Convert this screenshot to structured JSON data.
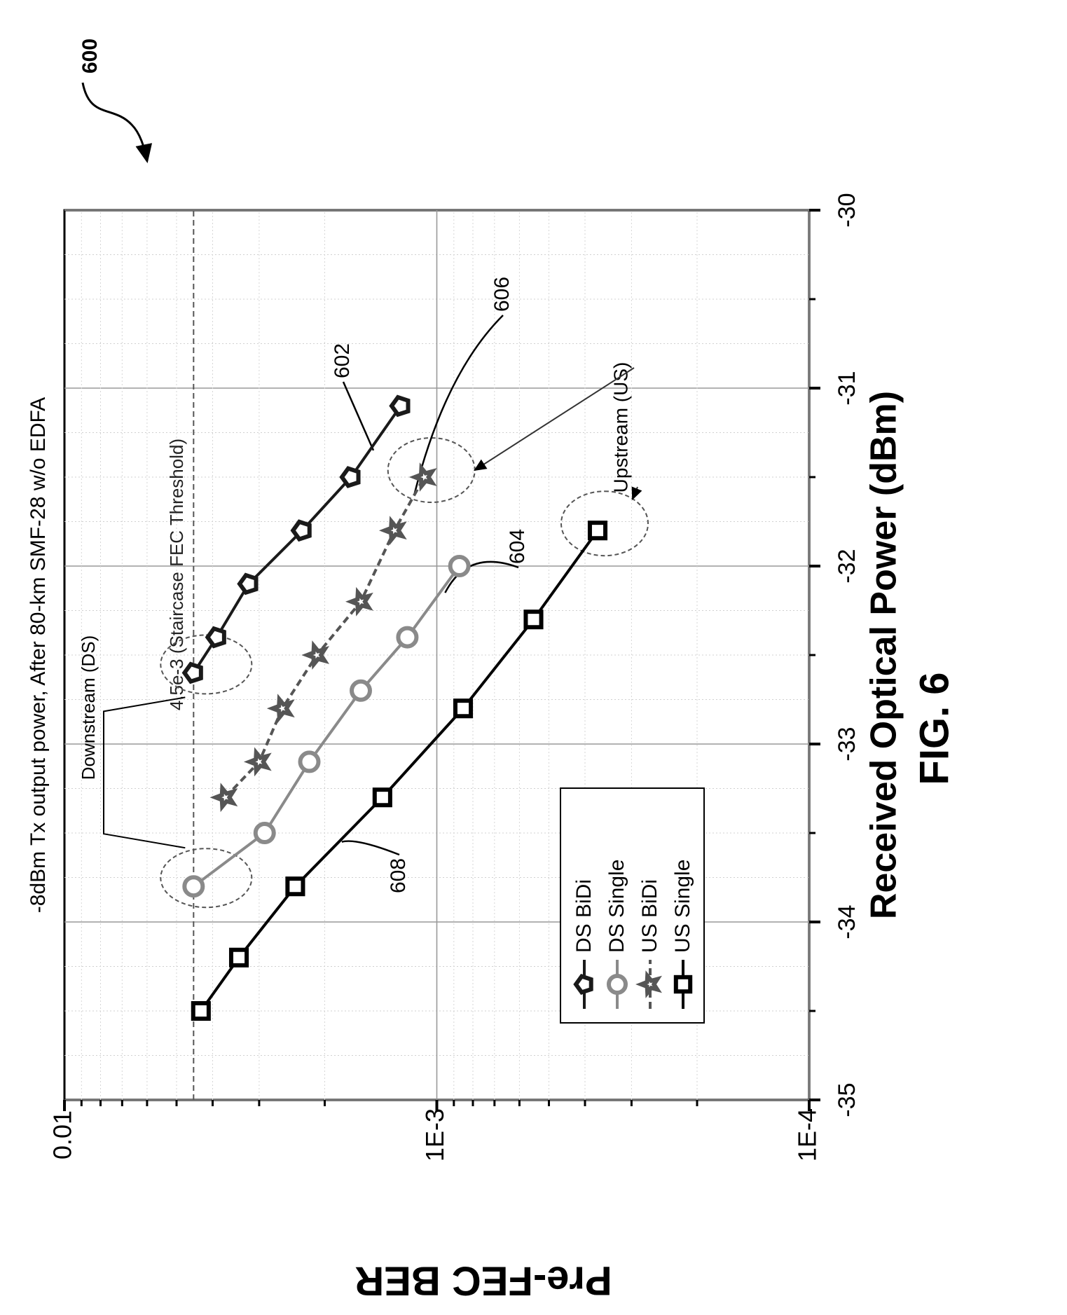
{
  "figure": {
    "ref_number": "600",
    "caption": "FIG. 6"
  },
  "chart_data": {
    "type": "line",
    "title": "-8dBm Tx output power, After 80-km SMF-28 w/o EDFA",
    "xlabel": "Received Optical Power (dBm)",
    "ylabel": "Pre-FEC BER",
    "xlim": [
      -35,
      -30
    ],
    "ylim": [
      0.0001,
      0.01
    ],
    "yscale": "log",
    "grid": true,
    "x_ticks": [
      -35,
      -34,
      -33,
      -32,
      -31,
      -30
    ],
    "x_tick_labels": [
      "-35",
      "-34",
      "-33",
      "-32",
      "-31",
      "-30"
    ],
    "y_ticks": [
      0.01,
      0.001,
      0.0001
    ],
    "y_tick_labels": [
      "0.01",
      "1E-3",
      "1E-4"
    ],
    "legend_position": "bottom-left",
    "series": [
      {
        "name": "DS BiDi",
        "marker": "pentagon",
        "color": "#1a1a1a",
        "x": [
          -32.6,
          -32.4,
          -32.1,
          -31.8,
          -31.5,
          -31.1
        ],
        "y": [
          0.0045,
          0.0039,
          0.0032,
          0.0023,
          0.0017,
          0.00125
        ]
      },
      {
        "name": "DS Single",
        "marker": "circle",
        "color": "#8a8a8a",
        "x": [
          -33.8,
          -33.5,
          -33.1,
          -32.7,
          -32.4,
          -32.0
        ],
        "y": [
          0.0045,
          0.0029,
          0.0022,
          0.0016,
          0.0012,
          0.00087
        ]
      },
      {
        "name": "US BiDi",
        "marker": "star",
        "color": "#555555",
        "x": [
          -33.3,
          -33.1,
          -32.8,
          -32.5,
          -32.2,
          -31.8,
          -31.5
        ],
        "y": [
          0.0037,
          0.003,
          0.0026,
          0.0021,
          0.0016,
          0.0013,
          0.00108
        ]
      },
      {
        "name": "US Single",
        "marker": "square",
        "color": "#000000",
        "x": [
          -34.5,
          -34.2,
          -33.8,
          -33.3,
          -32.8,
          -32.3,
          -31.8
        ],
        "y": [
          0.0043,
          0.0034,
          0.0024,
          0.0014,
          0.00085,
          0.00055,
          0.00037
        ]
      }
    ],
    "threshold": {
      "value": 0.0045,
      "label": "4.5e-3 (Staircase FEC Threshold)"
    },
    "annotations": [
      {
        "text": "Downstream (DS)"
      },
      {
        "text": "Upstream (US)"
      },
      {
        "text": "602",
        "series": "DS BiDi"
      },
      {
        "text": "604",
        "series": "DS Single"
      },
      {
        "text": "606",
        "series": "US BiDi"
      },
      {
        "text": "608",
        "series": "US Single"
      }
    ]
  }
}
